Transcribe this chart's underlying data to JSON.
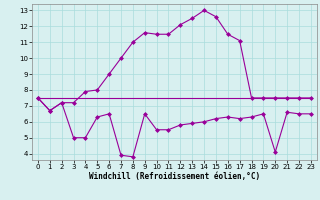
{
  "line1_x": [
    0,
    1,
    2,
    3,
    4,
    5,
    6,
    7,
    8,
    9,
    10,
    11,
    12,
    13,
    14,
    15,
    16,
    17,
    18,
    19,
    20,
    21,
    22,
    23
  ],
  "line1_y": [
    7.5,
    6.7,
    7.2,
    7.2,
    7.9,
    8.0,
    9.0,
    10.0,
    11.0,
    11.6,
    11.5,
    11.5,
    12.1,
    12.5,
    13.0,
    12.6,
    11.5,
    11.1,
    7.5,
    7.5,
    7.5,
    7.5,
    7.5,
    7.5
  ],
  "line2_x": [
    0,
    1,
    2,
    3,
    4,
    5,
    6,
    7,
    8,
    9,
    10,
    11,
    12,
    13,
    14,
    15,
    16,
    17,
    18,
    19,
    20,
    21,
    22,
    23
  ],
  "line2_y": [
    7.5,
    7.5,
    7.5,
    7.5,
    7.5,
    7.5,
    7.5,
    7.5,
    7.5,
    7.5,
    7.5,
    7.5,
    7.5,
    7.5,
    7.5,
    7.5,
    7.5,
    7.5,
    7.5,
    7.5,
    7.5,
    7.5,
    7.5,
    7.5
  ],
  "line3_x": [
    0,
    1,
    2,
    3,
    4,
    5,
    6,
    7,
    8,
    9,
    10,
    11,
    12,
    13,
    14,
    15,
    16,
    17,
    18,
    19,
    20,
    21,
    22,
    23
  ],
  "line3_y": [
    7.5,
    6.7,
    7.2,
    5.0,
    5.0,
    6.3,
    6.5,
    3.9,
    3.8,
    6.5,
    5.5,
    5.5,
    5.8,
    5.9,
    6.0,
    6.2,
    6.3,
    6.2,
    6.3,
    6.5,
    4.1,
    6.6,
    6.5,
    6.5
  ],
  "line_color": "#990099",
  "bg_color": "#d8f0f0",
  "grid_color": "#aadddd",
  "xlabel": "Windchill (Refroidissement éolien,°C)",
  "xlim": [
    -0.5,
    23.5
  ],
  "ylim": [
    3.6,
    13.4
  ],
  "yticks": [
    4,
    5,
    6,
    7,
    8,
    9,
    10,
    11,
    12,
    13
  ],
  "xticks": [
    0,
    1,
    2,
    3,
    4,
    5,
    6,
    7,
    8,
    9,
    10,
    11,
    12,
    13,
    14,
    15,
    16,
    17,
    18,
    19,
    20,
    21,
    22,
    23
  ],
  "markersize": 2.5,
  "linewidth": 0.8,
  "tick_fontsize": 5.0,
  "xlabel_fontsize": 5.5
}
